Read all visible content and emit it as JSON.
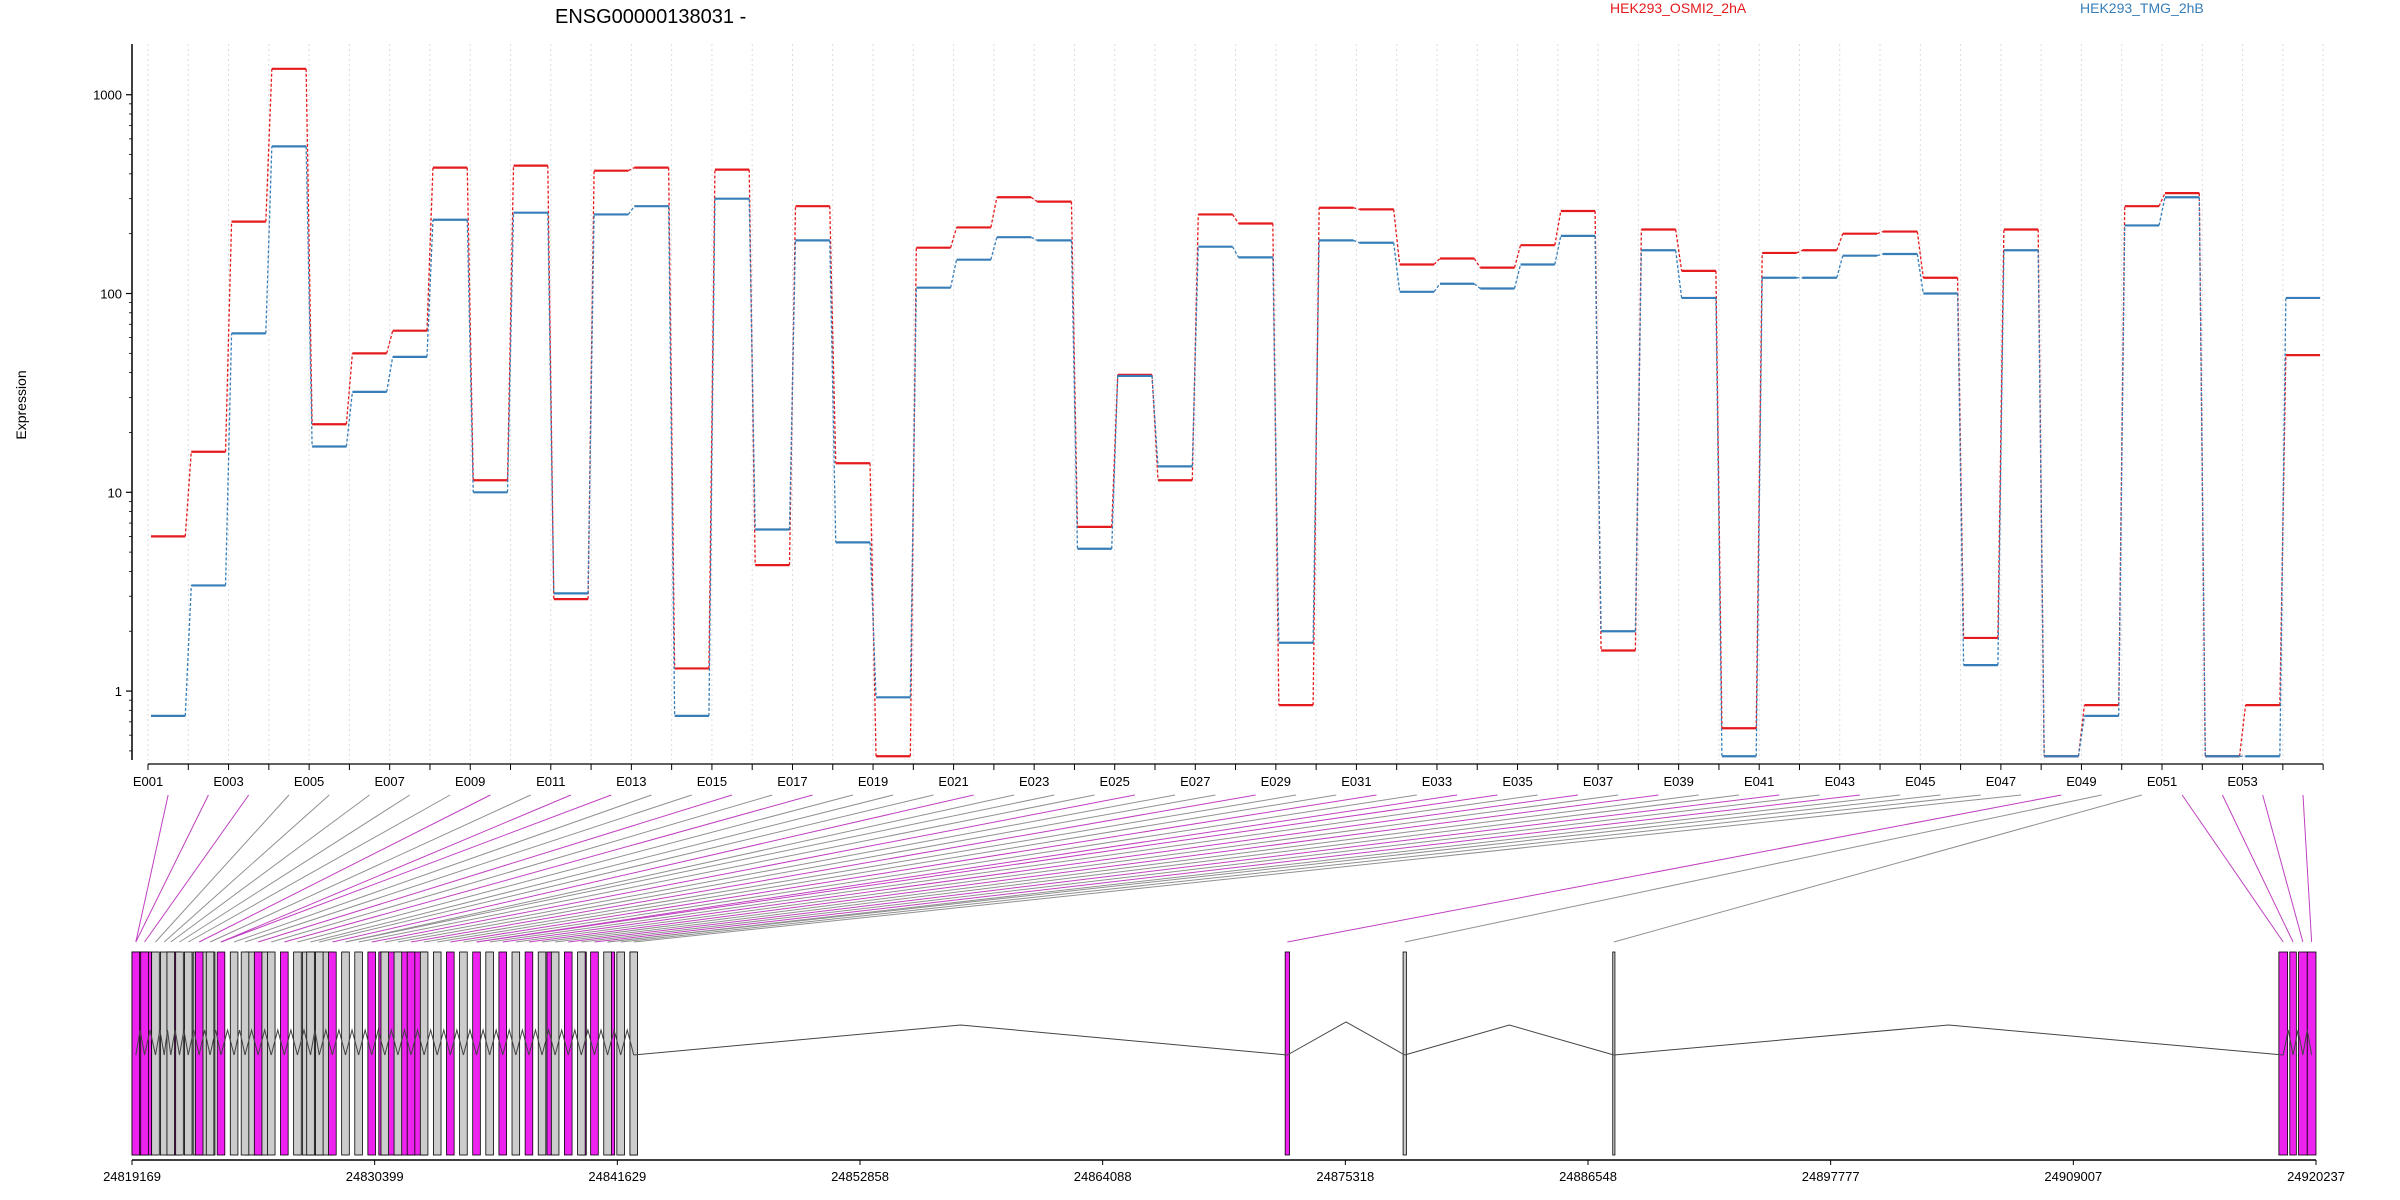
{
  "chart_data": {
    "type": "line",
    "title": "ENSG00000138031 -",
    "ylabel": "Expression",
    "yscale": "log",
    "ylim": [
      0.45,
      1800
    ],
    "yticks": [
      1,
      10,
      100,
      1000
    ],
    "ytick_labels": [
      "1",
      "10",
      "100",
      "1000"
    ],
    "exon_labels": [
      "E001",
      "E003",
      "E005",
      "E007",
      "E009",
      "E011",
      "E013",
      "E015",
      "E017",
      "E019",
      "E021",
      "E023",
      "E025",
      "E027",
      "E029",
      "E031",
      "E033",
      "E035",
      "E037",
      "E039",
      "E041",
      "E043",
      "E045",
      "E047",
      "E049",
      "E051",
      "E053"
    ],
    "series": [
      {
        "name": "HEK293_OSMI2_2hA",
        "color": "#e41a1c",
        "values": [
          6.0,
          16,
          230,
          1350,
          22,
          50,
          65,
          430,
          11.5,
          440,
          2.9,
          415,
          430,
          1.3,
          420,
          4.3,
          275,
          14,
          0.47,
          170,
          215,
          305,
          290,
          6.7,
          39,
          11.5,
          250,
          225,
          0.85,
          270,
          265,
          140,
          150,
          135,
          175,
          260,
          1.6,
          210,
          130,
          0.65,
          160,
          165,
          200,
          205,
          120,
          1.85,
          210,
          0.47,
          0.85,
          275,
          320,
          0.47,
          0.85,
          49
        ]
      },
      {
        "name": "HEK293_TMG_2hB",
        "color": "#377eb8",
        "values": [
          0.75,
          3.4,
          63,
          550,
          17,
          32,
          48,
          235,
          10,
          255,
          3.1,
          250,
          275,
          0.75,
          300,
          6.5,
          185,
          5.6,
          0.93,
          107,
          148,
          192,
          185,
          5.2,
          38.5,
          13.5,
          172,
          152,
          1.75,
          185,
          180,
          102,
          112,
          106,
          140,
          195,
          2.0,
          165,
          95,
          0.47,
          120,
          120,
          155,
          158,
          100,
          1.35,
          165,
          0.47,
          0.75,
          220,
          305,
          0.47,
          0.47,
          95
        ]
      }
    ],
    "genome_axis": {
      "tick_labels": [
        "24819169",
        "24830399",
        "24841629",
        "24852858",
        "24864088",
        "24875318",
        "24886548",
        "24897777",
        "24909007",
        "24920237"
      ],
      "start": 24819169,
      "end": 24920237
    },
    "exon_colors": {
      "differential": "#ee22ee",
      "normal": "#cccccc"
    }
  }
}
